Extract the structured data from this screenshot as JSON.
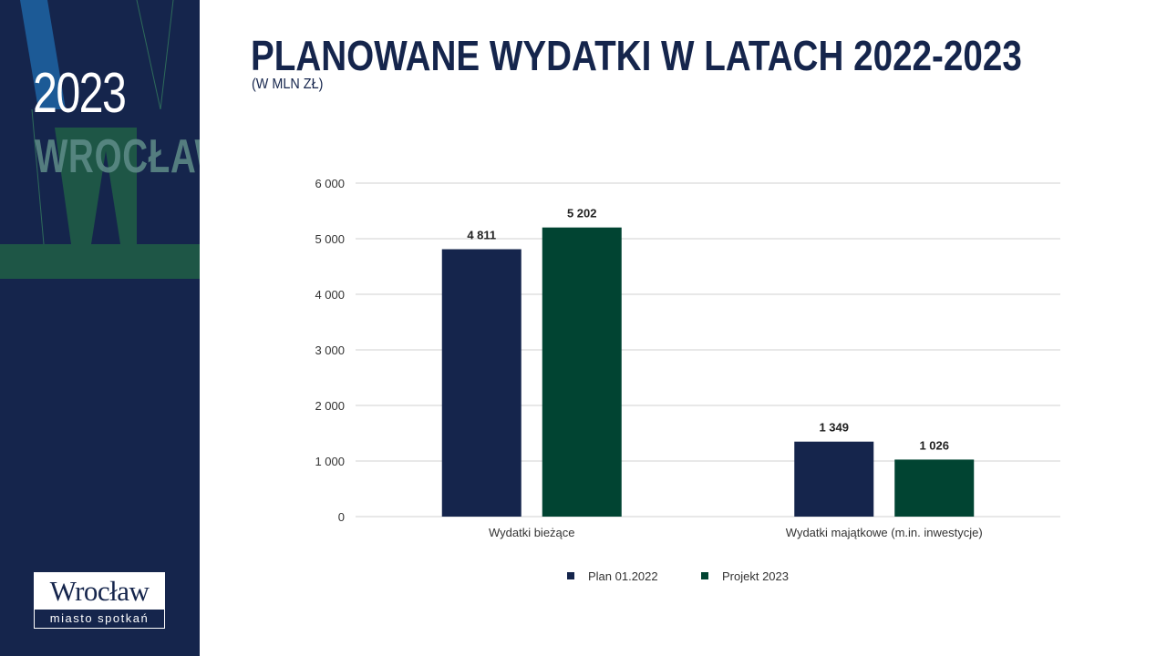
{
  "sidebar": {
    "year": "2023",
    "city": "WROCŁAW",
    "logo_name": "Wrocław",
    "logo_tagline": "miasto spotkań"
  },
  "title": "PLANOWANE WYDATKI W LATACH 2022-2023",
  "subtitle": "(W MLN ZŁ)",
  "colors": {
    "navy": "#15254c",
    "green": "#014432",
    "grid": "#d0d0d0"
  },
  "chart_data": {
    "type": "bar",
    "categories": [
      "Wydatki bieżące",
      "Wydatki majątkowe (m.in. inwestycje)"
    ],
    "series": [
      {
        "name": "Plan 01.2022",
        "values": [
          4811,
          1349
        ],
        "labels": [
          "4 811",
          "1 349"
        ],
        "color": "#15254c"
      },
      {
        "name": "Projekt 2023",
        "values": [
          5202,
          1026
        ],
        "labels": [
          "5 202",
          "1 026"
        ],
        "color": "#014432"
      }
    ],
    "ylim": [
      0,
      6000
    ],
    "yticks": [
      0,
      1000,
      2000,
      3000,
      4000,
      5000,
      6000
    ],
    "ytick_labels": [
      "0",
      "1 000",
      "2 000",
      "3 000",
      "4 000",
      "5 000",
      "6 000"
    ],
    "grid": true,
    "legend": "bottom"
  }
}
